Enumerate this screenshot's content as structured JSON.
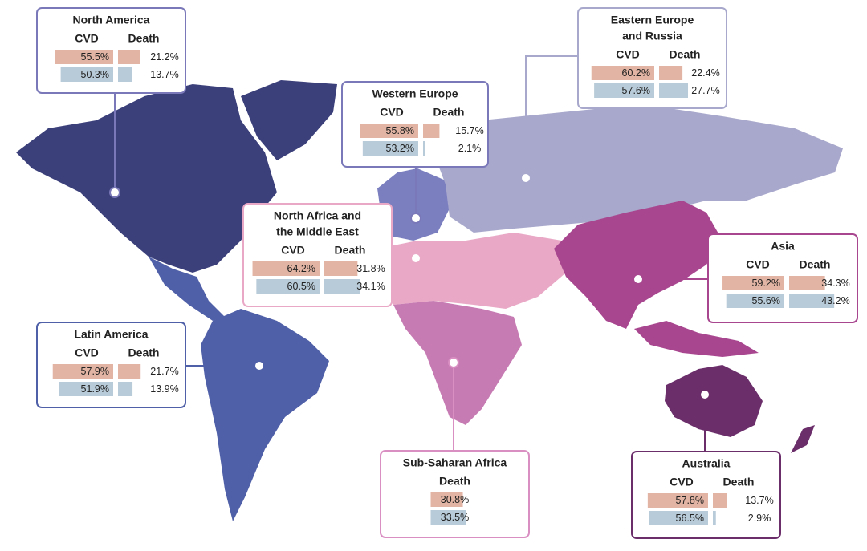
{
  "regions": [
    {
      "name": [
        "North America"
      ],
      "headers": [
        "CVD",
        "Death"
      ],
      "cvd": {
        "values": [
          55.5,
          50.3
        ],
        "value_labels": [
          "55.5%",
          "50.3%"
        ]
      },
      "death": {
        "values": [
          21.2,
          13.7
        ],
        "value_labels": [
          "21.2%",
          "13.7%"
        ]
      }
    },
    {
      "name": [
        "Western Europe"
      ],
      "headers": [
        "CVD",
        "Death"
      ],
      "cvd": {
        "values": [
          55.8,
          53.2
        ],
        "value_labels": [
          "55.8%",
          "53.2%"
        ]
      },
      "death": {
        "values": [
          15.7,
          2.1
        ],
        "value_labels": [
          "15.7%",
          "2.1%"
        ]
      }
    },
    {
      "name": [
        "Eastern Europe",
        "and Russia"
      ],
      "headers": [
        "CVD",
        "Death"
      ],
      "cvd": {
        "values": [
          60.2,
          57.6
        ],
        "value_labels": [
          "60.2%",
          "57.6%"
        ]
      },
      "death": {
        "values": [
          22.4,
          27.7
        ],
        "value_labels": [
          "22.4%",
          "27.7%"
        ]
      }
    },
    {
      "name": [
        "North Africa and",
        "the Middle East"
      ],
      "headers": [
        "CVD",
        "Death"
      ],
      "cvd": {
        "values": [
          64.2,
          60.5
        ],
        "value_labels": [
          "64.2%",
          "60.5%"
        ]
      },
      "death": {
        "values": [
          31.8,
          34.1
        ],
        "value_labels": [
          "31.8%",
          "34.1%"
        ]
      }
    },
    {
      "name": [
        "Asia"
      ],
      "headers": [
        "CVD",
        "Death"
      ],
      "cvd": {
        "values": [
          59.2,
          55.6
        ],
        "value_labels": [
          "59.2%",
          "55.6%"
        ]
      },
      "death": {
        "values": [
          34.3,
          43.2
        ],
        "value_labels": [
          "34.3%",
          "43.2%"
        ]
      }
    },
    {
      "name": [
        "Latin America"
      ],
      "headers": [
        "CVD",
        "Death"
      ],
      "cvd": {
        "values": [
          57.9,
          51.9
        ],
        "value_labels": [
          "57.9%",
          "51.9%"
        ]
      },
      "death": {
        "values": [
          21.7,
          13.9
        ],
        "value_labels": [
          "21.7%",
          "13.9%"
        ]
      }
    },
    {
      "name": [
        "Sub-Saharan Africa"
      ],
      "headers": [
        "Death"
      ],
      "death": {
        "values": [
          30.8,
          33.5
        ],
        "value_labels": [
          "30.8%",
          "33.5%"
        ]
      }
    },
    {
      "name": [
        "Australia"
      ],
      "headers": [
        "CVD",
        "Death"
      ],
      "cvd": {
        "values": [
          57.8,
          56.5
        ],
        "value_labels": [
          "57.8%",
          "56.5%"
        ]
      },
      "death": {
        "values": [
          13.7,
          2.9
        ],
        "value_labels": [
          "13.7%",
          "2.9%"
        ]
      }
    }
  ]
}
